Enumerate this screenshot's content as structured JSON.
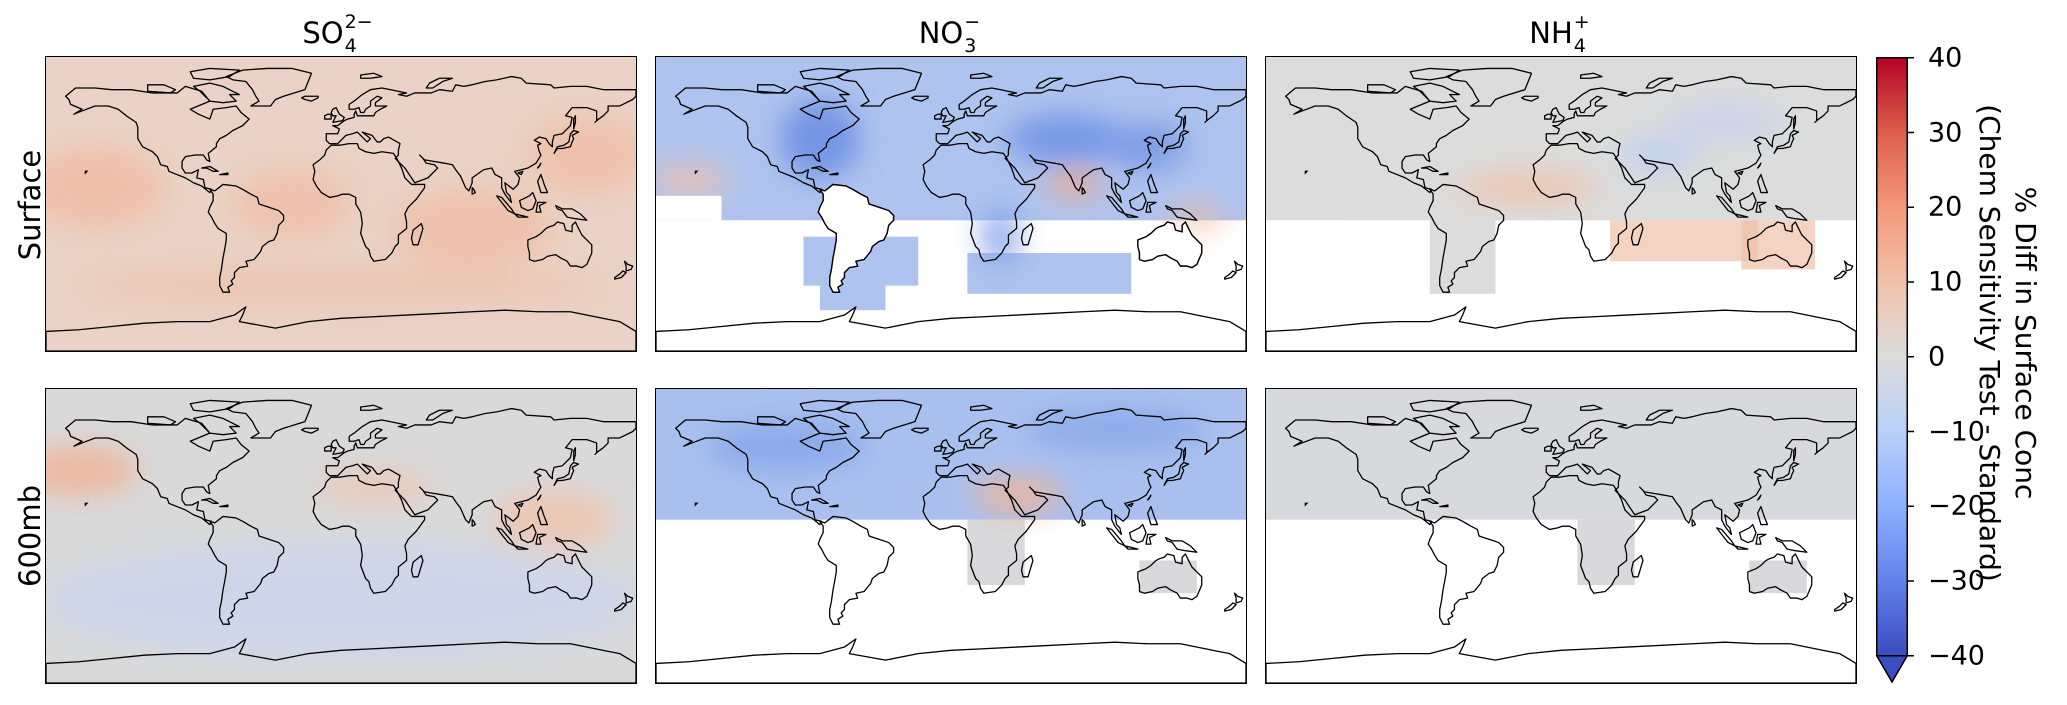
{
  "columns": [
    {
      "base": "SO",
      "sub": "4",
      "sup": "2−"
    },
    {
      "base": "NO",
      "sub": "3",
      "sup": "−"
    },
    {
      "base": "NH",
      "sub": "4",
      "sup": "+"
    }
  ],
  "rows": [
    "Surface",
    "600mb"
  ],
  "panels": [
    {
      "species": "SO4",
      "level": "Surface",
      "mode": "full",
      "fill": "#ead2c6",
      "tint": "#efbba3"
    },
    {
      "species": "NO3",
      "level": "Surface",
      "mode": "partial-south",
      "fill": "#aec3ee",
      "tint": "#8ba6ea"
    },
    {
      "species": "NH4",
      "level": "Surface",
      "mode": "partial-south",
      "fill": "#dcdcdc",
      "tint": "#f0c1a8"
    },
    {
      "species": "SO4",
      "level": "600mb",
      "mode": "full",
      "fill": "#d9d9da",
      "tint": "#ccd6ea"
    },
    {
      "species": "NO3",
      "level": "600mb",
      "mode": "north-only",
      "fill": "#a9c0ef",
      "tint": "#f2c3aa"
    },
    {
      "species": "NH4",
      "level": "600mb",
      "mode": "north-only",
      "fill": "#d8d9dc",
      "tint": "#dcdcdc"
    }
  ],
  "colorbar": {
    "min": -40,
    "max": 40,
    "ticks": [
      "40",
      "30",
      "20",
      "10",
      "0",
      "−10",
      "−20",
      "−30",
      "−40"
    ],
    "label_line1": "% Diff in Surface Conc",
    "label_line2": "(Chem Sensitivity Test - Standard)",
    "colors": [
      "#b40426",
      "#dd5f4b",
      "#f4987a",
      "#f1c2aa",
      "#dddcdc",
      "#b9d0f9",
      "#8db0fe",
      "#6282ea",
      "#3b4cc0"
    ],
    "extend": "min"
  }
}
